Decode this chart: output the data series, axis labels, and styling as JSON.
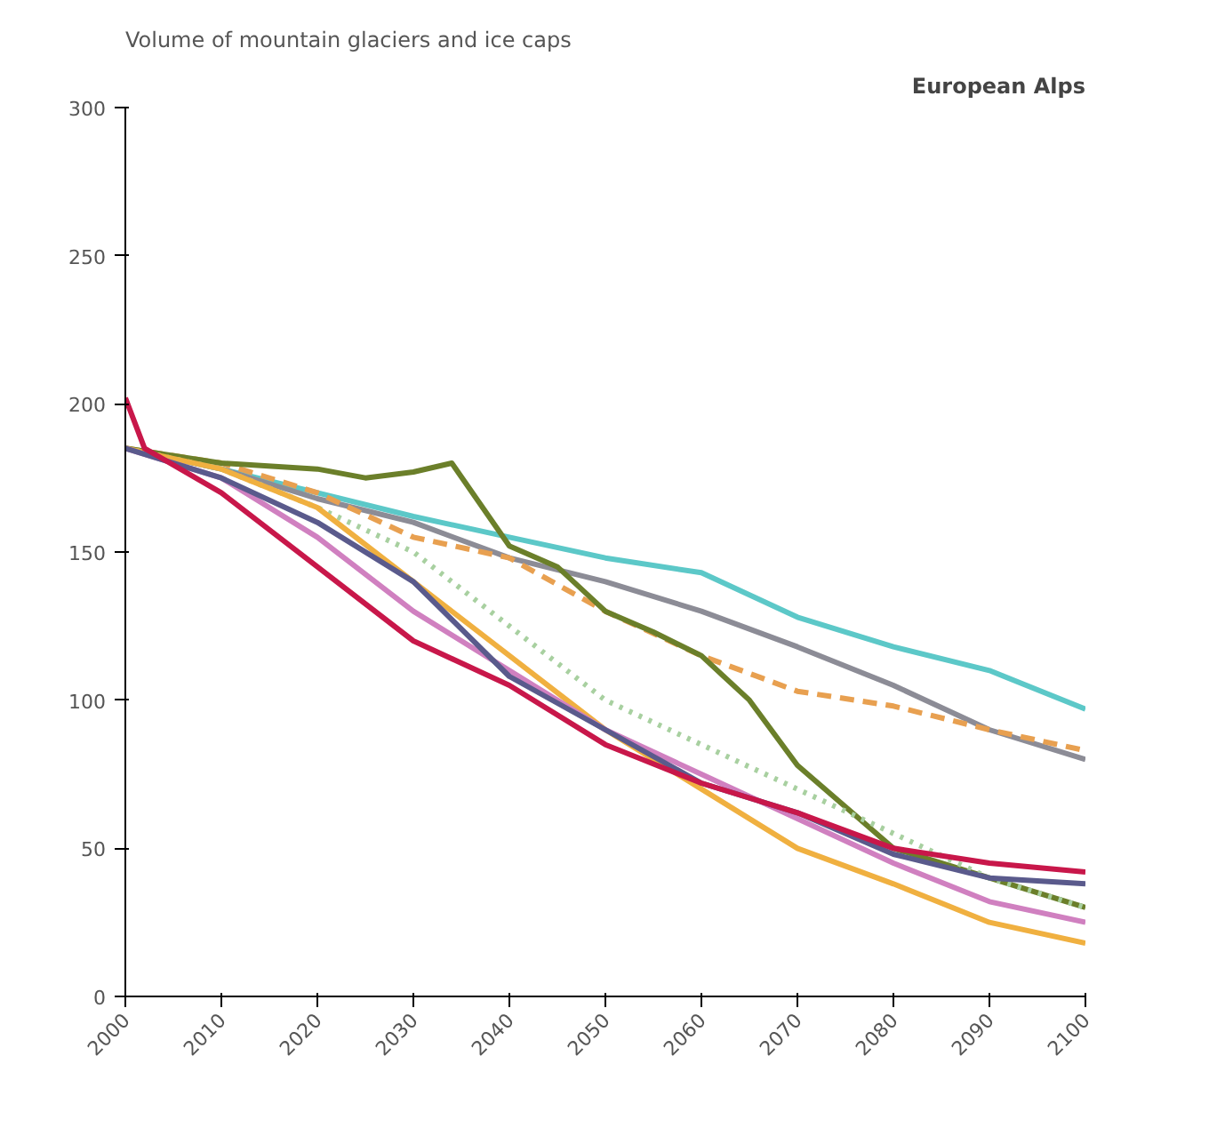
{
  "chart_data": {
    "type": "line",
    "title": "Volume of mountain glaciers and ice caps",
    "subtitle": "European Alps",
    "x": [
      2000,
      2010,
      2020,
      2030,
      2040,
      2050,
      2060,
      2070,
      2080,
      2090,
      2100
    ],
    "xlim": [
      2000,
      2100
    ],
    "xticks": [
      2000,
      2010,
      2020,
      2030,
      2040,
      2050,
      2060,
      2070,
      2080,
      2090,
      2100
    ],
    "ylim": [
      0,
      300
    ],
    "yticks": [
      0,
      50,
      100,
      150,
      200,
      250,
      300
    ],
    "grid": false,
    "marker": "none",
    "series": [
      {
        "color": "#5cc8c8",
        "values": [
          185,
          178,
          170,
          162,
          155,
          148,
          143,
          128,
          118,
          110,
          97
        ]
      },
      {
        "color": "#8c8c96",
        "values": [
          185,
          178,
          168,
          160,
          148,
          140,
          130,
          118,
          105,
          90,
          80
        ]
      },
      {
        "color": "#e8a050",
        "line_style": "dashed",
        "values": [
          185,
          180,
          170,
          155,
          148,
          130,
          115,
          103,
          98,
          90,
          83
        ]
      },
      {
        "color": "#6b7f2a",
        "x": [
          2000,
          2010,
          2020,
          2025,
          2030,
          2034,
          2040,
          2045,
          2050,
          2055,
          2060,
          2065,
          2070,
          2080,
          2090,
          2100
        ],
        "values": [
          185,
          180,
          178,
          175,
          177,
          180,
          152,
          145,
          130,
          123,
          115,
          100,
          78,
          50,
          40,
          30
        ]
      },
      {
        "color": "#a8d0a0",
        "line_style": "dotted",
        "values": [
          185,
          178,
          165,
          150,
          125,
          100,
          85,
          70,
          55,
          40,
          30
        ]
      },
      {
        "color": "#f0b040",
        "values": [
          185,
          178,
          165,
          140,
          115,
          90,
          70,
          50,
          38,
          25,
          18
        ]
      },
      {
        "color": "#d080c0",
        "values": [
          185,
          175,
          155,
          130,
          110,
          90,
          75,
          60,
          45,
          32,
          25
        ]
      },
      {
        "color": "#5a5a8c",
        "values": [
          185,
          175,
          160,
          140,
          108,
          90,
          72,
          62,
          48,
          40,
          38
        ]
      },
      {
        "color": "#c8174a",
        "x": [
          2000,
          2002,
          2010,
          2020,
          2030,
          2040,
          2050,
          2060,
          2070,
          2080,
          2090,
          2100
        ],
        "values": [
          202,
          185,
          170,
          145,
          120,
          105,
          85,
          72,
          62,
          50,
          45,
          42
        ]
      }
    ]
  }
}
